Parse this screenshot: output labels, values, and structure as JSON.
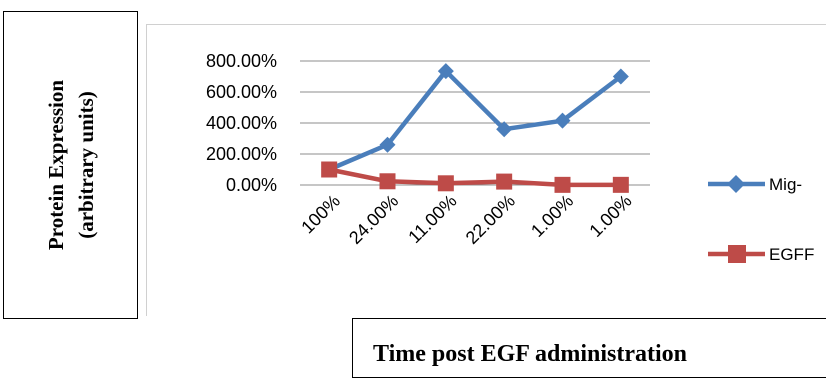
{
  "chart_data": {
    "type": "line",
    "categories": [
      "100%",
      "24.00%",
      "11.00%",
      "22.00%",
      "1.00%",
      "1.00%"
    ],
    "series": [
      {
        "name": "Mig-",
        "color": "#4a7ebb",
        "marker": "diamond",
        "values": [
          100,
          260,
          735,
          360,
          415,
          700
        ]
      },
      {
        "name": "EGFF",
        "color": "#be4b48",
        "marker": "square",
        "values": [
          100,
          24,
          11,
          22,
          1,
          1
        ]
      }
    ],
    "yticks": [
      "0.00%",
      "200.00%",
      "400.00%",
      "600.00%",
      "800.00%"
    ],
    "ylim": [
      0,
      800
    ],
    "ylabel_line1": "Protein Expression",
    "ylabel_line2": "(arbitrary units)",
    "xlabel": "Time post EGF administration",
    "grid": true,
    "legend_position": "right"
  }
}
